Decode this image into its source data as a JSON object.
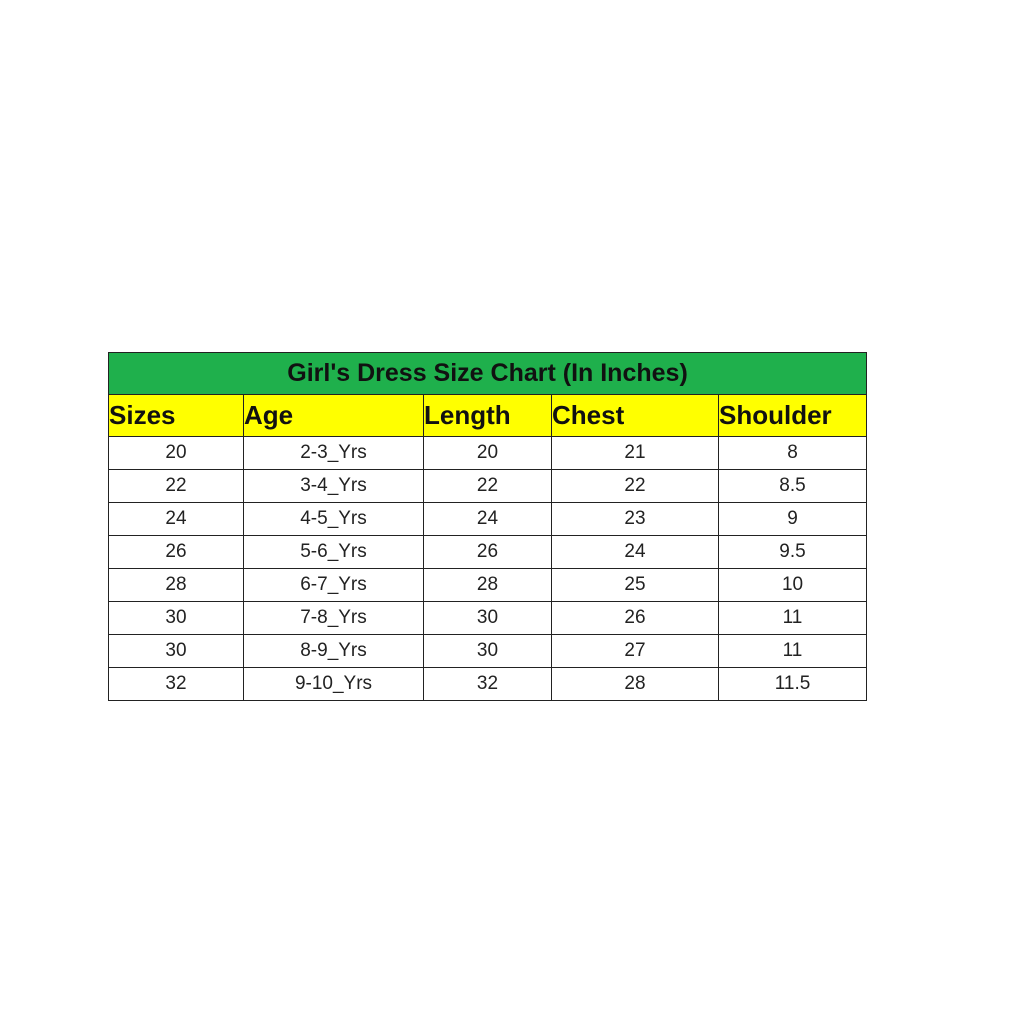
{
  "title": "Girl's Dress Size Chart (In Inches)",
  "colors": {
    "title_bg": "#1fb04c",
    "header_bg": "#ffff00"
  },
  "columns": [
    "Sizes",
    "Age",
    "Length",
    "Chest",
    "Shoulder"
  ],
  "rows": [
    [
      "20",
      "2-3_Yrs",
      "20",
      "21",
      "8"
    ],
    [
      "22",
      "3-4_Yrs",
      "22",
      "22",
      "8.5"
    ],
    [
      "24",
      "4-5_Yrs",
      "24",
      "23",
      "9"
    ],
    [
      "26",
      "5-6_Yrs",
      "26",
      "24",
      "9.5"
    ],
    [
      "28",
      "6-7_Yrs",
      "28",
      "25",
      "10"
    ],
    [
      "30",
      "7-8_Yrs",
      "30",
      "26",
      "11"
    ],
    [
      "30",
      "8-9_Yrs",
      "30",
      "27",
      "11"
    ],
    [
      "32",
      "9-10_Yrs",
      "32",
      "28",
      "11.5"
    ]
  ]
}
